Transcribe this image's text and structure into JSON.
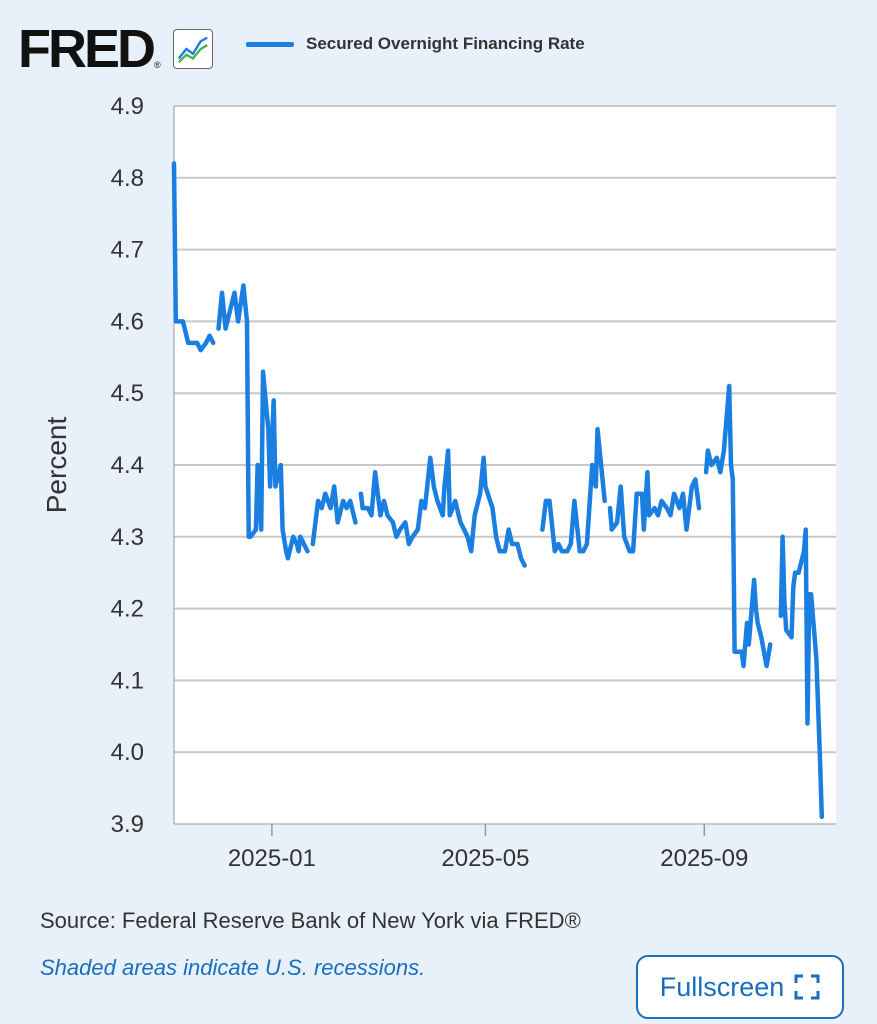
{
  "header": {
    "logo_text": "FRED",
    "logo_reg": "®",
    "logo_icon": "line-graph-icon"
  },
  "legend": {
    "label": "Secured Overnight Financing Rate",
    "color": "#1a7fe0"
  },
  "footer": {
    "source": "Source: Federal Reserve Bank of New York via FRED®",
    "recessions": "Shaded areas indicate U.S. recessions.",
    "fullscreen_label": "Fullscreen",
    "fullscreen_icon": "fullscreen-icon"
  },
  "colors": {
    "background": "#e8f0fa",
    "plot_background": "#ffffff",
    "line": "#1a7fe0",
    "accent": "#1a6ec0",
    "grid": "#c8c8c8"
  },
  "chart_data": {
    "type": "line",
    "title": "",
    "xlabel": "",
    "ylabel": "Percent",
    "ylim": [
      3.9,
      4.9
    ],
    "yticks": [
      "4.9",
      "4.8",
      "4.7",
      "4.6",
      "4.5",
      "4.4",
      "4.3",
      "4.2",
      "4.1",
      "4.0",
      "3.9"
    ],
    "xlim": [
      "2024-11-07",
      "2025-11-14"
    ],
    "xticks": [
      {
        "date": "2025-01-01",
        "label": "2025-01"
      },
      {
        "date": "2025-05-01",
        "label": "2025-05"
      },
      {
        "date": "2025-09-01",
        "label": "2025-09"
      }
    ],
    "grid": true,
    "legend_position": "top",
    "series": [
      {
        "name": "Secured Overnight Financing Rate",
        "segments": [
          [
            [
              "2024-11-07",
              4.82
            ],
            [
              "2024-11-08",
              4.6
            ],
            [
              "2024-11-12",
              4.6
            ],
            [
              "2024-11-13",
              4.59
            ],
            [
              "2024-11-15",
              4.57
            ],
            [
              "2024-11-20",
              4.57
            ],
            [
              "2024-11-22",
              4.56
            ],
            [
              "2024-11-25",
              4.57
            ],
            [
              "2024-11-27",
              4.58
            ],
            [
              "2024-11-29",
              4.57
            ]
          ],
          [
            [
              "2024-12-02",
              4.59
            ],
            [
              "2024-12-04",
              4.64
            ],
            [
              "2024-12-06",
              4.59
            ],
            [
              "2024-12-09",
              4.62
            ],
            [
              "2024-12-11",
              4.64
            ],
            [
              "2024-12-13",
              4.6
            ],
            [
              "2024-12-16",
              4.65
            ],
            [
              "2024-12-18",
              4.6
            ],
            [
              "2024-12-19",
              4.3
            ],
            [
              "2024-12-20",
              4.3
            ],
            [
              "2024-12-23",
              4.31
            ],
            [
              "2024-12-24",
              4.4
            ],
            [
              "2024-12-26",
              4.31
            ],
            [
              "2024-12-27",
              4.53
            ],
            [
              "2024-12-30",
              4.45
            ],
            [
              "2024-12-31",
              4.37
            ],
            [
              "2025-01-02",
              4.49
            ],
            [
              "2025-01-03",
              4.37
            ],
            [
              "2025-01-06",
              4.4
            ],
            [
              "2025-01-07",
              4.31
            ],
            [
              "2025-01-09",
              4.28
            ],
            [
              "2025-01-10",
              4.27
            ],
            [
              "2025-01-13",
              4.3
            ],
            [
              "2025-01-15",
              4.29
            ],
            [
              "2025-01-16",
              4.28
            ],
            [
              "2025-01-17",
              4.3
            ],
            [
              "2025-01-21",
              4.28
            ]
          ],
          [
            [
              "2025-01-24",
              4.29
            ],
            [
              "2025-01-27",
              4.35
            ],
            [
              "2025-01-29",
              4.34
            ],
            [
              "2025-01-31",
              4.36
            ],
            [
              "2025-02-03",
              4.34
            ],
            [
              "2025-02-05",
              4.37
            ],
            [
              "2025-02-07",
              4.32
            ],
            [
              "2025-02-10",
              4.35
            ],
            [
              "2025-02-12",
              4.34
            ],
            [
              "2025-02-14",
              4.35
            ],
            [
              "2025-02-17",
              4.32
            ]
          ],
          [
            [
              "2025-02-20",
              4.36
            ],
            [
              "2025-02-21",
              4.34
            ],
            [
              "2025-02-24",
              4.34
            ],
            [
              "2025-02-26",
              4.33
            ],
            [
              "2025-02-28",
              4.39
            ],
            [
              "2025-03-03",
              4.33
            ],
            [
              "2025-03-05",
              4.35
            ],
            [
              "2025-03-07",
              4.33
            ],
            [
              "2025-03-10",
              4.32
            ],
            [
              "2025-03-12",
              4.3
            ],
            [
              "2025-03-14",
              4.31
            ],
            [
              "2025-03-17",
              4.32
            ],
            [
              "2025-03-19",
              4.29
            ],
            [
              "2025-03-21",
              4.3
            ],
            [
              "2025-03-24",
              4.31
            ],
            [
              "2025-03-26",
              4.35
            ],
            [
              "2025-03-28",
              4.34
            ],
            [
              "2025-03-31",
              4.41
            ],
            [
              "2025-04-02",
              4.37
            ],
            [
              "2025-04-04",
              4.35
            ],
            [
              "2025-04-07",
              4.33
            ],
            [
              "2025-04-08",
              4.37
            ],
            [
              "2025-04-10",
              4.42
            ],
            [
              "2025-04-11",
              4.33
            ],
            [
              "2025-04-14",
              4.35
            ],
            [
              "2025-04-16",
              4.33
            ],
            [
              "2025-04-17",
              4.32
            ],
            [
              "2025-04-21",
              4.3
            ],
            [
              "2025-04-23",
              4.28
            ],
            [
              "2025-04-25",
              4.33
            ],
            [
              "2025-04-28",
              4.36
            ],
            [
              "2025-04-30",
              4.41
            ],
            [
              "2025-05-01",
              4.37
            ],
            [
              "2025-05-05",
              4.34
            ],
            [
              "2025-05-07",
              4.3
            ],
            [
              "2025-05-09",
              4.28
            ],
            [
              "2025-05-12",
              4.28
            ],
            [
              "2025-05-14",
              4.31
            ],
            [
              "2025-05-16",
              4.29
            ],
            [
              "2025-05-19",
              4.29
            ],
            [
              "2025-05-21",
              4.27
            ],
            [
              "2025-05-23",
              4.26
            ]
          ],
          [
            [
              "2025-06-02",
              4.31
            ],
            [
              "2025-06-04",
              4.35
            ],
            [
              "2025-06-06",
              4.35
            ],
            [
              "2025-06-09",
              4.28
            ],
            [
              "2025-06-11",
              4.29
            ],
            [
              "2025-06-13",
              4.28
            ],
            [
              "2025-06-16",
              4.28
            ],
            [
              "2025-06-18",
              4.29
            ],
            [
              "2025-06-20",
              4.35
            ],
            [
              "2025-06-23",
              4.28
            ],
            [
              "2025-06-25",
              4.28
            ],
            [
              "2025-06-27",
              4.29
            ],
            [
              "2025-06-30",
              4.4
            ],
            [
              "2025-07-02",
              4.37
            ],
            [
              "2025-07-03",
              4.45
            ],
            [
              "2025-07-07",
              4.35
            ]
          ],
          [
            [
              "2025-07-10",
              4.34
            ],
            [
              "2025-07-11",
              4.31
            ],
            [
              "2025-07-14",
              4.32
            ],
            [
              "2025-07-16",
              4.37
            ],
            [
              "2025-07-18",
              4.3
            ],
            [
              "2025-07-21",
              4.28
            ],
            [
              "2025-07-23",
              4.28
            ],
            [
              "2025-07-25",
              4.36
            ],
            [
              "2025-07-28",
              4.36
            ],
            [
              "2025-07-29",
              4.31
            ],
            [
              "2025-07-31",
              4.39
            ],
            [
              "2025-08-01",
              4.33
            ],
            [
              "2025-08-04",
              4.34
            ],
            [
              "2025-08-06",
              4.33
            ],
            [
              "2025-08-08",
              4.35
            ],
            [
              "2025-08-11",
              4.34
            ],
            [
              "2025-08-13",
              4.33
            ],
            [
              "2025-08-15",
              4.36
            ],
            [
              "2025-08-18",
              4.34
            ],
            [
              "2025-08-20",
              4.36
            ],
            [
              "2025-08-22",
              4.31
            ],
            [
              "2025-08-25",
              4.37
            ],
            [
              "2025-08-27",
              4.38
            ],
            [
              "2025-08-29",
              4.34
            ]
          ],
          [
            [
              "2025-09-02",
              4.39
            ],
            [
              "2025-09-03",
              4.42
            ],
            [
              "2025-09-05",
              4.4
            ],
            [
              "2025-09-08",
              4.41
            ],
            [
              "2025-09-10",
              4.39
            ],
            [
              "2025-09-12",
              4.42
            ],
            [
              "2025-09-15",
              4.51
            ],
            [
              "2025-09-16",
              4.4
            ],
            [
              "2025-09-17",
              4.38
            ],
            [
              "2025-09-18",
              4.14
            ],
            [
              "2025-09-19",
              4.14
            ],
            [
              "2025-09-22",
              4.14
            ],
            [
              "2025-09-23",
              4.12
            ],
            [
              "2025-09-25",
              4.18
            ],
            [
              "2025-09-26",
              4.15
            ],
            [
              "2025-09-29",
              4.24
            ],
            [
              "2025-09-30",
              4.2
            ],
            [
              "2025-10-01",
              4.18
            ],
            [
              "2025-10-03",
              4.16
            ],
            [
              "2025-10-06",
              4.12
            ],
            [
              "2025-10-08",
              4.15
            ]
          ],
          [
            [
              "2025-10-14",
              4.19
            ],
            [
              "2025-10-15",
              4.3
            ],
            [
              "2025-10-16",
              4.21
            ],
            [
              "2025-10-17",
              4.17
            ],
            [
              "2025-10-20",
              4.16
            ],
            [
              "2025-10-21",
              4.23
            ],
            [
              "2025-10-22",
              4.25
            ],
            [
              "2025-10-24",
              4.25
            ],
            [
              "2025-10-27",
              4.28
            ],
            [
              "2025-10-28",
              4.31
            ],
            [
              "2025-10-29",
              4.04
            ],
            [
              "2025-10-30",
              4.22
            ],
            [
              "2025-10-31",
              4.22
            ],
            [
              "2025-11-03",
              4.13
            ],
            [
              "2025-11-05",
              3.99
            ],
            [
              "2025-11-06",
              3.91
            ]
          ]
        ]
      }
    ]
  }
}
